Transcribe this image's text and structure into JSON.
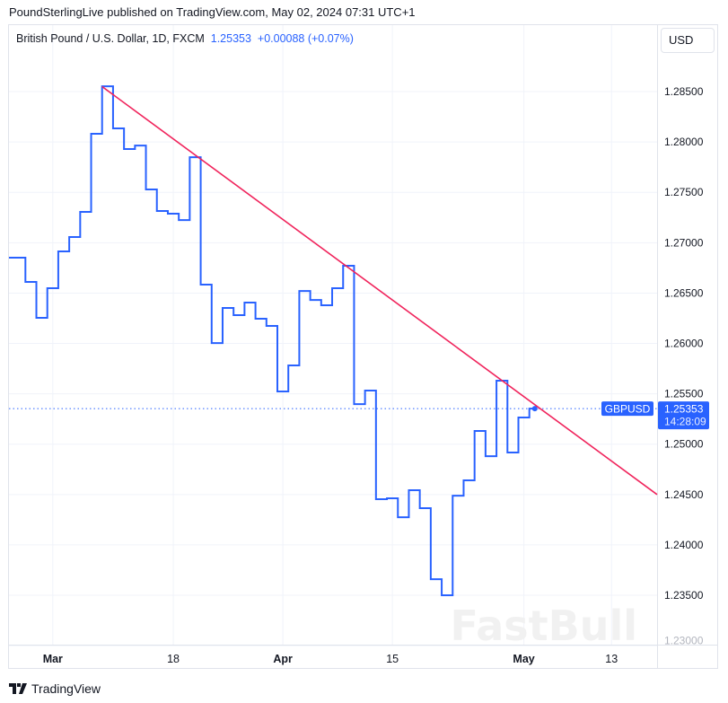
{
  "header": {
    "published": "PoundSterlingLive published on TradingView.com, May 02, 2024 07:31 UTC+1"
  },
  "legend": {
    "symbol": "British Pound / U.S. Dollar, 1D, FXCM",
    "price": "1.25353",
    "change": "+0.00088 (+0.07%)"
  },
  "currency_button": "USD",
  "price_label": {
    "symbol": "GBPUSD",
    "price": "1.25353",
    "countdown": "14:28:09"
  },
  "watermark": "FastBull",
  "footer": {
    "brand": "TradingView"
  },
  "colors": {
    "line": "#2962ff",
    "trend": "#f0245c",
    "grid": "#f0f3fa",
    "axis_text": "#131722",
    "label_bg": "#2962ff"
  },
  "chart_data": {
    "type": "line",
    "style": "step",
    "title": "British Pound / U.S. Dollar, 1D, FXCM",
    "xlabel": "",
    "ylabel": "USD",
    "ylim": [
      1.2301,
      1.2916
    ],
    "xlim": [
      0,
      59.16
    ],
    "yticks": [
      "1.23000",
      "1.23500",
      "1.24000",
      "1.24500",
      "1.25000",
      "1.25500",
      "1.26000",
      "1.26500",
      "1.27000",
      "1.27500",
      "1.28000",
      "1.28500"
    ],
    "xticks": [
      {
        "index": 4,
        "label": "Mar",
        "bold": true
      },
      {
        "index": 15,
        "label": "18",
        "bold": false
      },
      {
        "index": 25,
        "label": "Apr",
        "bold": true
      },
      {
        "index": 35,
        "label": "15",
        "bold": false
      },
      {
        "index": 47,
        "label": "May",
        "bold": true
      },
      {
        "index": 55,
        "label": "13",
        "bold": false
      }
    ],
    "grid": true,
    "series": [
      {
        "name": "GBPUSD close",
        "dates": [
          "Feb 26",
          "Feb 27",
          "Feb 28",
          "Feb 29",
          "Mar 1",
          "Mar 4",
          "Mar 5",
          "Mar 6",
          "Mar 7",
          "Mar 8",
          "Mar 11",
          "Mar 12",
          "Mar 13",
          "Mar 14",
          "Mar 15",
          "Mar 18",
          "Mar 19",
          "Mar 20",
          "Mar 21",
          "Mar 22",
          "Mar 25",
          "Mar 26",
          "Mar 27",
          "Mar 28",
          "Mar 29",
          "Apr 1",
          "Apr 2",
          "Apr 3",
          "Apr 4",
          "Apr 5",
          "Apr 8",
          "Apr 9",
          "Apr 10",
          "Apr 11",
          "Apr 12",
          "Apr 15",
          "Apr 16",
          "Apr 17",
          "Apr 18",
          "Apr 19",
          "Apr 22",
          "Apr 23",
          "Apr 24",
          "Apr 25",
          "Apr 26",
          "Apr 29",
          "Apr 30",
          "May 1",
          "May 2"
        ],
        "values": [
          1.26851,
          1.26851,
          1.26611,
          1.26254,
          1.26548,
          1.26914,
          1.27056,
          1.27306,
          1.28081,
          1.28553,
          1.28135,
          1.2793,
          1.27965,
          1.27529,
          1.27315,
          1.27288,
          1.27225,
          1.27849,
          1.26584,
          1.26004,
          1.26352,
          1.26281,
          1.26406,
          1.26245,
          1.26174,
          1.25523,
          1.25782,
          1.26521,
          1.26432,
          1.26379,
          1.26548,
          1.26771,
          1.25398,
          1.25532,
          1.24454,
          1.24463,
          1.24275,
          1.24543,
          1.24365,
          1.2366,
          1.235,
          1.24489,
          1.24641,
          1.25131,
          1.24881,
          1.2563,
          1.24917,
          1.25265,
          1.25353
        ]
      }
    ],
    "trendline": {
      "from": {
        "index": 8.5,
        "value": 1.2855
      },
      "to": {
        "index": 59.16,
        "value": 1.245
      }
    },
    "last_value": 1.25353
  }
}
